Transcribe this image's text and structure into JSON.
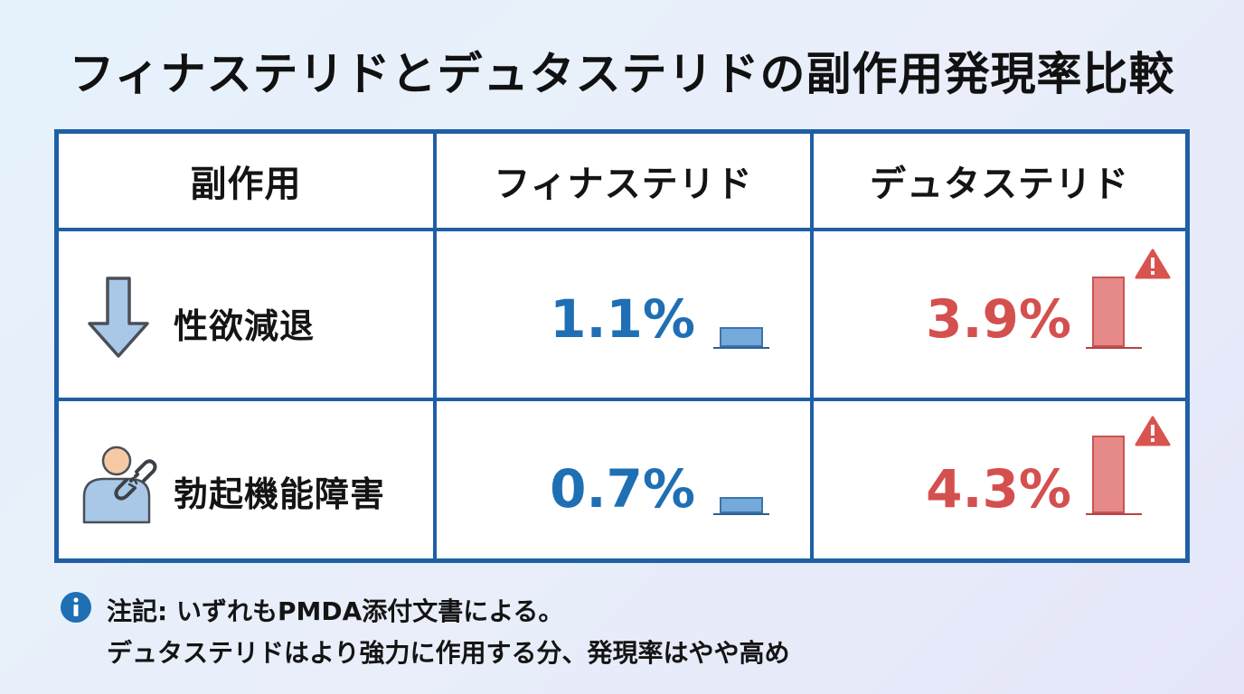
{
  "title": "フィナステリドとデュタステリドの副作用発現率比較",
  "table": {
    "headers": [
      "副作用",
      "フィナステリド",
      "デュタステリド"
    ],
    "rows": [
      {
        "icon": "down-arrow-icon",
        "label": "性欲減退",
        "finasteride": "1.1%",
        "dutasteride": "3.9%",
        "finasteride_value": 1.1,
        "dutasteride_value": 3.9
      },
      {
        "icon": "person-broken-chain-icon",
        "label": "勃起機能障害",
        "finasteride": "0.7%",
        "dutasteride": "4.3%",
        "finasteride_value": 0.7,
        "dutasteride_value": 4.3
      }
    ]
  },
  "footer": {
    "line1": "注記: いずれもPMDA添付文書による。",
    "line2": "デュタステリドはより強力に作用する分、発現率はやや高め"
  },
  "colors": {
    "border": "#1e5fa6",
    "finasteride": "#1f6fb5",
    "dutasteride": "#d4504f",
    "warning": "#d9534f"
  }
}
